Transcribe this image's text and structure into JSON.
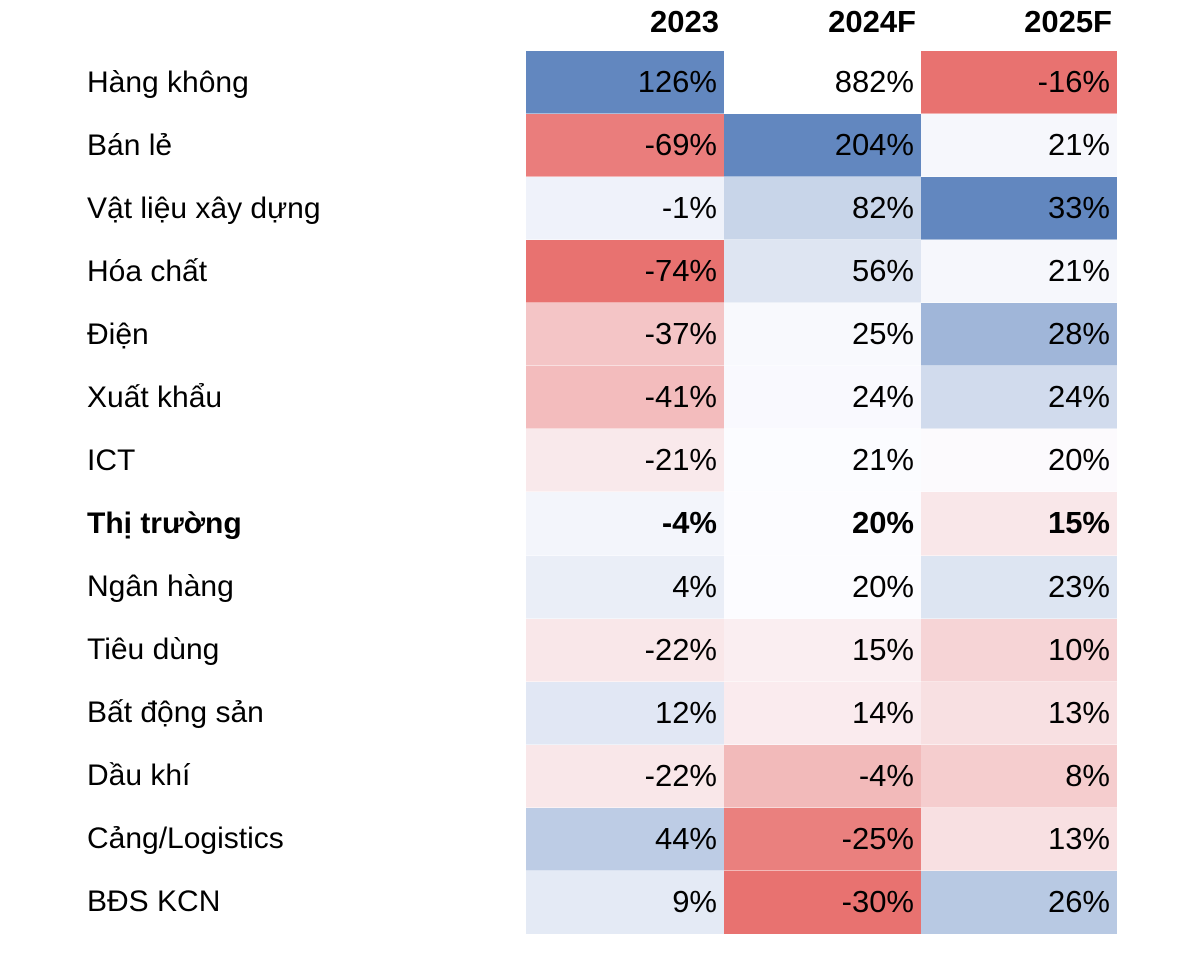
{
  "chart_data": {
    "type": "heatmap",
    "title": "",
    "columns": [
      "2023",
      "2024F",
      "2025F"
    ],
    "unit": "%",
    "legend_position": "none",
    "grid": false,
    "color_scale": {
      "negative_min": "#E87270",
      "neutral_mid": "#FCFCFF",
      "positive_max": "#6287BF",
      "outlier_fill": "#FFFFFF"
    },
    "text_color": "#000000",
    "rows": [
      {
        "label": "Hàng không",
        "bold": false,
        "values": [
          126,
          882,
          -16
        ],
        "display": [
          "126%",
          "882%",
          "-16%"
        ],
        "colors": [
          "#6287BF",
          "#FFFFFF",
          "#E87270"
        ]
      },
      {
        "label": "Bán lẻ",
        "bold": false,
        "values": [
          -69,
          204,
          21
        ],
        "display": [
          "-69%",
          "204%",
          "21%"
        ],
        "colors": [
          "#EA7D7C",
          "#6287BF",
          "#F6F7FC"
        ]
      },
      {
        "label": "Vật liệu xây dựng",
        "bold": false,
        "values": [
          -1,
          82,
          33
        ],
        "display": [
          "-1%",
          "82%",
          "33%"
        ],
        "colors": [
          "#EFF2FA",
          "#C8D5E9",
          "#6287BF"
        ]
      },
      {
        "label": "Hóa chất",
        "bold": false,
        "values": [
          -74,
          56,
          21
        ],
        "display": [
          "-74%",
          "56%",
          "21%"
        ],
        "colors": [
          "#E87270",
          "#DEE5F2",
          "#F6F7FC"
        ]
      },
      {
        "label": "Điện",
        "bold": false,
        "values": [
          -37,
          25,
          28
        ],
        "display": [
          "-37%",
          "25%",
          "28%"
        ],
        "colors": [
          "#F4C5C6",
          "#F8F9FD",
          "#A0B6D9"
        ]
      },
      {
        "label": "Xuất khẩu",
        "bold": false,
        "values": [
          -41,
          24,
          24
        ],
        "display": [
          "-41%",
          "24%",
          "24%"
        ],
        "colors": [
          "#F3BCBD",
          "#F9F9FE",
          "#D1DBED"
        ]
      },
      {
        "label": "ICT",
        "bold": false,
        "values": [
          -21,
          21,
          20
        ],
        "display": [
          "-21%",
          "21%",
          "20%"
        ],
        "colors": [
          "#F9E9EB",
          "#FBFCFF",
          "#FCFAFD"
        ]
      },
      {
        "label": "Thị trường",
        "bold": true,
        "values": [
          -4,
          20,
          15
        ],
        "display": [
          "-4%",
          "20%",
          "15%"
        ],
        "colors": [
          "#F3F5FB",
          "#FCFCFF",
          "#F9E7E9"
        ]
      },
      {
        "label": "Ngân hàng",
        "bold": false,
        "values": [
          4,
          20,
          23
        ],
        "display": [
          "4%",
          "20%",
          "23%"
        ],
        "colors": [
          "#EAEEF7",
          "#FCFCFF",
          "#DDE5F2"
        ]
      },
      {
        "label": "Tiêu dùng",
        "bold": false,
        "values": [
          -22,
          15,
          10
        ],
        "display": [
          "-22%",
          "15%",
          "10%"
        ],
        "colors": [
          "#F9E7E9",
          "#FAEEF1",
          "#F6D4D6"
        ]
      },
      {
        "label": "Bất động sản",
        "bold": false,
        "values": [
          12,
          14,
          13
        ],
        "display": [
          "12%",
          "14%",
          "13%"
        ],
        "colors": [
          "#E1E7F4",
          "#FAEBEE",
          "#F8E0E2"
        ]
      },
      {
        "label": "Dầu khí",
        "bold": false,
        "values": [
          -22,
          -4,
          8
        ],
        "display": [
          "-22%",
          "-4%",
          "8%"
        ],
        "colors": [
          "#F9E7E9",
          "#F2BABA",
          "#F5CDCE"
        ]
      },
      {
        "label": "Cảng/Logistics",
        "bold": false,
        "values": [
          44,
          -25,
          13
        ],
        "display": [
          "44%",
          "-25%",
          "13%"
        ],
        "colors": [
          "#BDCCE5",
          "#EA807E",
          "#F8E0E2"
        ]
      },
      {
        "label": "BĐS KCN",
        "bold": false,
        "values": [
          9,
          -30,
          26
        ],
        "display": [
          "9%",
          "-30%",
          "26%"
        ],
        "colors": [
          "#E4EAF5",
          "#E87270",
          "#B8C9E3"
        ]
      }
    ]
  }
}
